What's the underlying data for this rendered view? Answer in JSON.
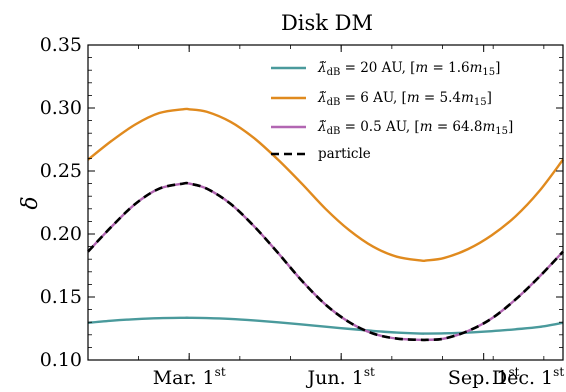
{
  "chart_data": {
    "type": "line",
    "title": "Disk DM",
    "xlabel": "",
    "ylabel": "δ",
    "ylim": [
      0.1,
      0.35
    ],
    "xlim": [
      0,
      1
    ],
    "yticks": [
      0.1,
      0.15,
      0.2,
      0.25,
      0.3,
      0.35
    ],
    "ytick_labels": [
      "0.10",
      "0.15",
      "0.20",
      "0.25",
      "0.30",
      "0.35"
    ],
    "xticks": [
      {
        "pos": 0.213,
        "month": "Mar. 1",
        "sup": "st"
      },
      {
        "pos": 0.533,
        "month": "Jun. 1",
        "sup": "st"
      },
      {
        "pos": 0.833,
        "month": "Sep. 1",
        "sup": "st"
      },
      {
        "pos": 1.083,
        "month": "Dec. 1",
        "sup": "st"
      }
    ],
    "grid": false,
    "legend_position": "top-right",
    "x": [
      0.0,
      0.05,
      0.1,
      0.15,
      0.2,
      0.213,
      0.25,
      0.3,
      0.35,
      0.4,
      0.45,
      0.5,
      0.55,
      0.6,
      0.65,
      0.7,
      0.713,
      0.75,
      0.8,
      0.85,
      0.9,
      0.95,
      1.0
    ],
    "series": [
      {
        "name": "λ̃dB = 20 AU,  [m = 1.6m15]",
        "color": "#4a9a9c",
        "dash": "solid",
        "values": [
          0.1295,
          0.1312,
          0.1324,
          0.1332,
          0.1335,
          0.1335,
          0.1333,
          0.1326,
          0.1314,
          0.1299,
          0.1282,
          0.1264,
          0.1247,
          0.1231,
          0.1218,
          0.121,
          0.121,
          0.1212,
          0.1218,
          0.1229,
          0.1244,
          0.1262,
          0.1295
        ]
      },
      {
        "name": "λ̃dB = 6 AU,  [m = 5.4m15]",
        "color": "#e08a1e",
        "dash": "solid",
        "values": [
          0.259,
          0.274,
          0.287,
          0.296,
          0.299,
          0.299,
          0.297,
          0.289,
          0.276,
          0.259,
          0.24,
          0.22,
          0.203,
          0.19,
          0.182,
          0.179,
          0.179,
          0.181,
          0.188,
          0.199,
          0.214,
          0.234,
          0.259
        ]
      },
      {
        "name": "λ̃dB = 0.5 AU,  [m = 64.8m15]",
        "color": "#b266b2",
        "dash": "solid",
        "values": [
          0.186,
          0.206,
          0.224,
          0.236,
          0.24,
          0.24,
          0.236,
          0.224,
          0.206,
          0.185,
          0.163,
          0.144,
          0.13,
          0.121,
          0.117,
          0.116,
          0.116,
          0.117,
          0.123,
          0.133,
          0.148,
          0.166,
          0.186
        ]
      },
      {
        "name": "particle",
        "color": "#000000",
        "dash": "dashed",
        "values": [
          0.186,
          0.206,
          0.224,
          0.236,
          0.24,
          0.24,
          0.236,
          0.224,
          0.206,
          0.185,
          0.163,
          0.144,
          0.13,
          0.121,
          0.117,
          0.116,
          0.116,
          0.117,
          0.123,
          0.133,
          0.148,
          0.166,
          0.186
        ]
      }
    ],
    "legend": [
      {
        "lambda": "λ̃",
        "sub": "dB",
        "value": " = 20 AU,  [",
        "m": "m",
        "eq": " = 1.6",
        "m2": "m",
        "sub2": "15",
        "close": "]"
      },
      {
        "lambda": "λ̃",
        "sub": "dB",
        "value": " = 6 AU,  [",
        "m": "m",
        "eq": " = 5.4",
        "m2": "m",
        "sub2": "15",
        "close": "]"
      },
      {
        "lambda": "λ̃",
        "sub": "dB",
        "value": " = 0.5 AU,  [",
        "m": "m",
        "eq": " = 64.8",
        "m2": "m",
        "sub2": "15",
        "close": "]"
      },
      {
        "plain": "particle"
      }
    ]
  }
}
